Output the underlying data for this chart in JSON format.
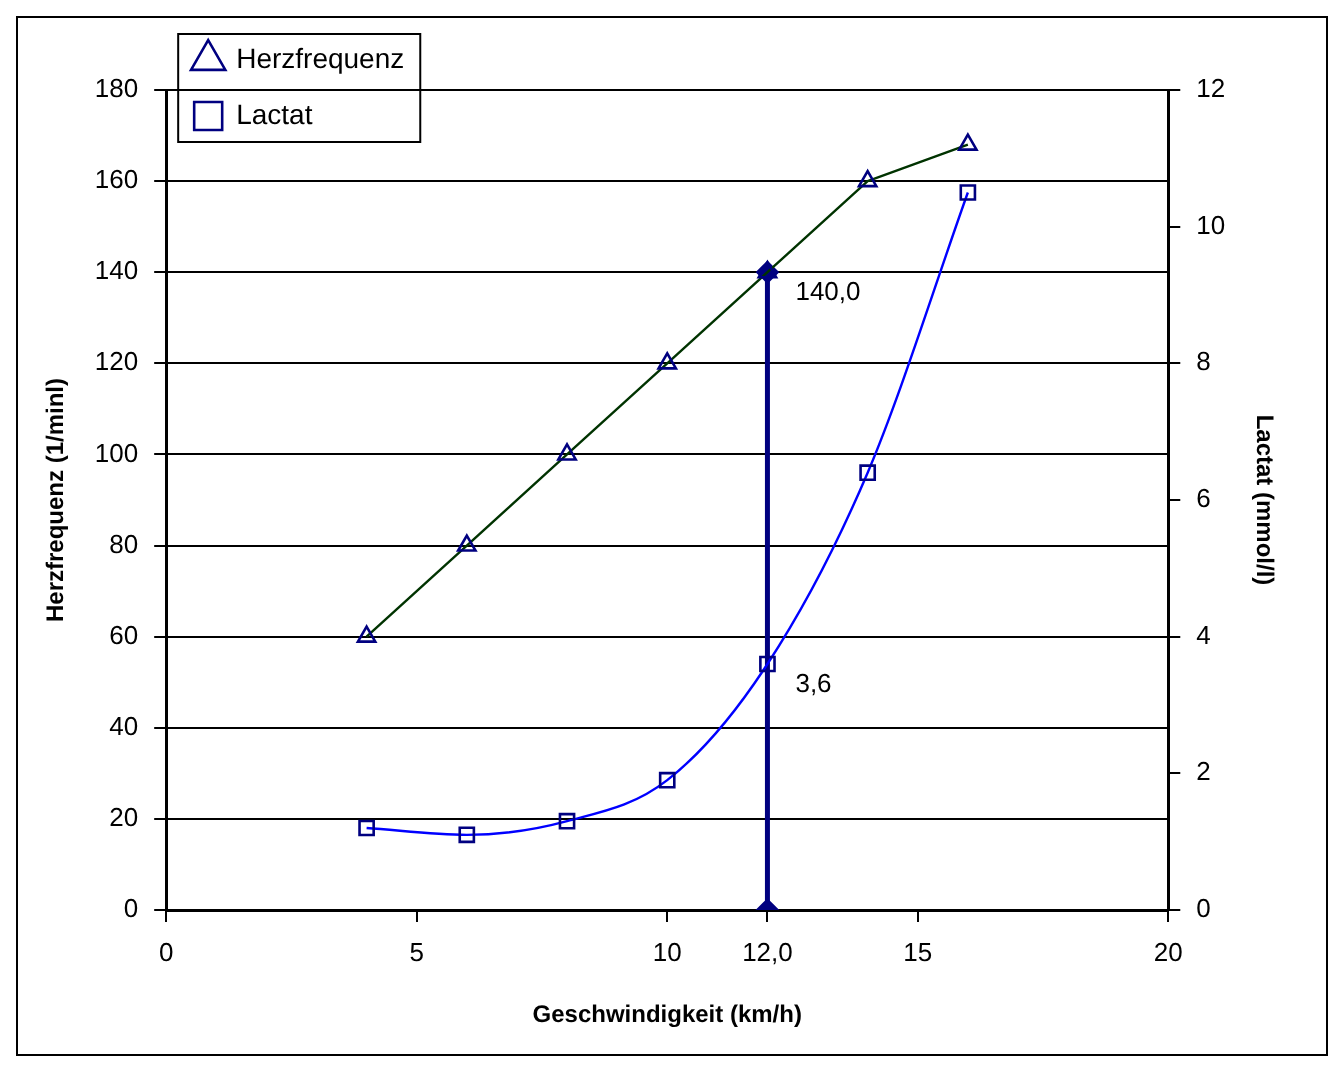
{
  "chart_data": {
    "type": "line",
    "xlabel": "Geschwindigkeit (km/h)",
    "ylabel": "Herzfrequenz (1/minl)",
    "y2label": "Lactat (mmol/l)",
    "x": [
      4,
      6,
      8,
      10,
      12,
      14,
      16
    ],
    "series": [
      {
        "name": "Herzfrequenz",
        "color": "#003300",
        "marker": "triangle",
        "values": [
          60,
          80,
          100,
          120,
          140,
          160,
          168
        ],
        "value_labels": [
          null,
          null,
          null,
          null,
          "140,0",
          null,
          null
        ]
      },
      {
        "name": "Lactat",
        "color": "#0000ff",
        "marker": "square",
        "axis": "y2",
        "values": [
          1.2,
          1.1,
          1.3,
          1.9,
          3.6,
          6.4,
          10.5
        ],
        "value_labels": [
          null,
          null,
          null,
          null,
          "3,6",
          null,
          null
        ]
      },
      {
        "color": "#000080",
        "marker": "diamond",
        "x": [
          12,
          12
        ],
        "values": [
          0,
          140
        ]
      }
    ],
    "xlim": [
      0,
      20
    ],
    "xticks": [
      0,
      5,
      10,
      {
        "value": 12,
        "label": "12,0"
      },
      15,
      20
    ],
    "ylim": [
      0,
      180
    ],
    "yticks": [
      0,
      20,
      40,
      60,
      80,
      100,
      120,
      140,
      160,
      180
    ],
    "y2lim": [
      0,
      12
    ],
    "y2ticks": [
      0,
      2,
      4,
      6,
      8,
      10,
      12
    ],
    "grid": "y",
    "legend": "top left",
    "line_style": "solid"
  }
}
